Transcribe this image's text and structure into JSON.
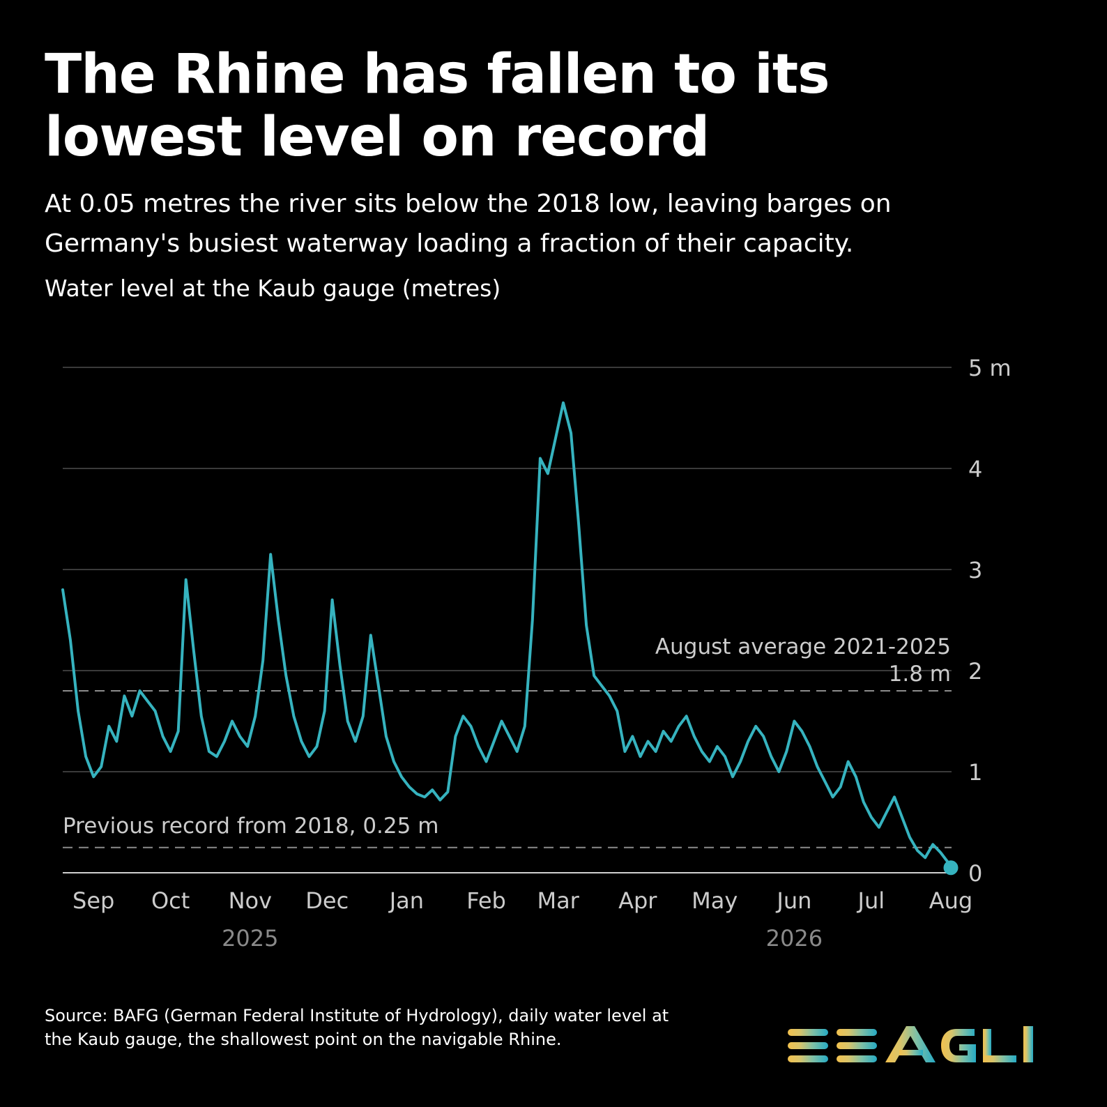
{
  "header": {
    "title": "The Rhine has fallen to its lowest level on record",
    "subtitle": "At 0.05 metres the river sits below the 2018 low, leaving barges on Germany's busiest waterway loading a fraction of their capacity.",
    "ylabel": "Water level at the Kaub gauge (metres)"
  },
  "footer": {
    "source": "Source: BAFG (German Federal Institute of Hydrology), daily water level at the Kaub gauge, the shallowest point on the navigable Rhine.",
    "logo_text": "EEAGLI"
  },
  "colors": {
    "background": "#000000",
    "line": "#36b3bf",
    "reference_line": "#8c8c8c",
    "gridline": "#3a3a3a",
    "axis_text": "#cccccc",
    "year_text": "#8a8a8a",
    "logo_gradient": [
      "#f2c14e",
      "#d8c46b",
      "#7fc0a6",
      "#26aac4"
    ]
  },
  "chart_data": {
    "type": "line",
    "title": "",
    "ylabel": "",
    "ylim": [
      0,
      5
    ],
    "y_ticks": [
      {
        "value": 0,
        "label": "0"
      },
      {
        "value": 1,
        "label": "1"
      },
      {
        "value": 2,
        "label": "2"
      },
      {
        "value": 3,
        "label": "3"
      },
      {
        "value": 4,
        "label": "4"
      },
      {
        "value": 5,
        "label": "5 m"
      }
    ],
    "grid": true,
    "x_range": [
      "2025-08-20",
      "2026-08-16"
    ],
    "x_ticks": [
      {
        "date": "2025-09-01",
        "label": "Sep"
      },
      {
        "date": "2025-10-01",
        "label": "Oct"
      },
      {
        "date": "2025-11-01",
        "label": "Nov"
      },
      {
        "date": "2025-12-01",
        "label": "Dec"
      },
      {
        "date": "2026-01-01",
        "label": "Jan"
      },
      {
        "date": "2026-02-01",
        "label": "Feb"
      },
      {
        "date": "2026-03-01",
        "label": "Mar"
      },
      {
        "date": "2026-04-01",
        "label": "Apr"
      },
      {
        "date": "2026-05-01",
        "label": "May"
      },
      {
        "date": "2026-06-01",
        "label": "Jun"
      },
      {
        "date": "2026-07-01",
        "label": "Jul"
      },
      {
        "date": "2026-08-01",
        "label": "Aug"
      }
    ],
    "year_labels": [
      {
        "date": "2025-11-01",
        "label": "2025"
      },
      {
        "date": "2026-06-01",
        "label": "2026"
      }
    ],
    "reference_lines": [
      {
        "value": 1.8,
        "label_lines": [
          "August average 2021-2025",
          "1.8 m"
        ],
        "label_align": "right"
      },
      {
        "value": 0.25,
        "label_lines": [
          "Previous record from 2018, 0.25 m"
        ],
        "label_align": "left"
      }
    ],
    "series": [
      {
        "points": [
          [
            "2025-08-20",
            2.8
          ],
          [
            "2025-08-23",
            2.3
          ],
          [
            "2025-08-26",
            1.6
          ],
          [
            "2025-08-29",
            1.15
          ],
          [
            "2025-09-01",
            0.95
          ],
          [
            "2025-09-04",
            1.05
          ],
          [
            "2025-09-07",
            1.45
          ],
          [
            "2025-09-10",
            1.3
          ],
          [
            "2025-09-13",
            1.75
          ],
          [
            "2025-09-16",
            1.55
          ],
          [
            "2025-09-19",
            1.8
          ],
          [
            "2025-09-22",
            1.7
          ],
          [
            "2025-09-25",
            1.6
          ],
          [
            "2025-09-28",
            1.35
          ],
          [
            "2025-10-01",
            1.2
          ],
          [
            "2025-10-04",
            1.4
          ],
          [
            "2025-10-07",
            2.9
          ],
          [
            "2025-10-10",
            2.2
          ],
          [
            "2025-10-13",
            1.55
          ],
          [
            "2025-10-16",
            1.2
          ],
          [
            "2025-10-19",
            1.15
          ],
          [
            "2025-10-22",
            1.3
          ],
          [
            "2025-10-25",
            1.5
          ],
          [
            "2025-10-28",
            1.35
          ],
          [
            "2025-10-31",
            1.25
          ],
          [
            "2025-11-03",
            1.55
          ],
          [
            "2025-11-06",
            2.1
          ],
          [
            "2025-11-09",
            3.15
          ],
          [
            "2025-11-12",
            2.5
          ],
          [
            "2025-11-15",
            1.95
          ],
          [
            "2025-11-18",
            1.55
          ],
          [
            "2025-11-21",
            1.3
          ],
          [
            "2025-11-24",
            1.15
          ],
          [
            "2025-11-27",
            1.25
          ],
          [
            "2025-11-30",
            1.6
          ],
          [
            "2025-12-03",
            2.7
          ],
          [
            "2025-12-06",
            2.05
          ],
          [
            "2025-12-09",
            1.5
          ],
          [
            "2025-12-12",
            1.3
          ],
          [
            "2025-12-15",
            1.55
          ],
          [
            "2025-12-18",
            2.35
          ],
          [
            "2025-12-21",
            1.85
          ],
          [
            "2025-12-24",
            1.35
          ],
          [
            "2025-12-27",
            1.1
          ],
          [
            "2025-12-30",
            0.95
          ],
          [
            "2026-01-02",
            0.85
          ],
          [
            "2026-01-05",
            0.78
          ],
          [
            "2026-01-08",
            0.75
          ],
          [
            "2026-01-11",
            0.82
          ],
          [
            "2026-01-14",
            0.72
          ],
          [
            "2026-01-17",
            0.8
          ],
          [
            "2026-01-20",
            1.35
          ],
          [
            "2026-01-23",
            1.55
          ],
          [
            "2026-01-26",
            1.45
          ],
          [
            "2026-01-29",
            1.25
          ],
          [
            "2026-02-01",
            1.1
          ],
          [
            "2026-02-04",
            1.3
          ],
          [
            "2026-02-07",
            1.5
          ],
          [
            "2026-02-10",
            1.35
          ],
          [
            "2026-02-13",
            1.2
          ],
          [
            "2026-02-16",
            1.45
          ],
          [
            "2026-02-19",
            2.5
          ],
          [
            "2026-02-22",
            4.1
          ],
          [
            "2026-02-25",
            3.95
          ],
          [
            "2026-02-28",
            4.3
          ],
          [
            "2026-03-03",
            4.65
          ],
          [
            "2026-03-06",
            4.35
          ],
          [
            "2026-03-09",
            3.45
          ],
          [
            "2026-03-12",
            2.45
          ],
          [
            "2026-03-15",
            1.95
          ],
          [
            "2026-03-18",
            1.85
          ],
          [
            "2026-03-21",
            1.75
          ],
          [
            "2026-03-24",
            1.6
          ],
          [
            "2026-03-27",
            1.2
          ],
          [
            "2026-03-30",
            1.35
          ],
          [
            "2026-04-02",
            1.15
          ],
          [
            "2026-04-05",
            1.3
          ],
          [
            "2026-04-08",
            1.2
          ],
          [
            "2026-04-11",
            1.4
          ],
          [
            "2026-04-14",
            1.3
          ],
          [
            "2026-04-17",
            1.45
          ],
          [
            "2026-04-20",
            1.55
          ],
          [
            "2026-04-23",
            1.35
          ],
          [
            "2026-04-26",
            1.2
          ],
          [
            "2026-04-29",
            1.1
          ],
          [
            "2026-05-02",
            1.25
          ],
          [
            "2026-05-05",
            1.15
          ],
          [
            "2026-05-08",
            0.95
          ],
          [
            "2026-05-11",
            1.1
          ],
          [
            "2026-05-14",
            1.3
          ],
          [
            "2026-05-17",
            1.45
          ],
          [
            "2026-05-20",
            1.35
          ],
          [
            "2026-05-23",
            1.15
          ],
          [
            "2026-05-26",
            1.0
          ],
          [
            "2026-05-29",
            1.2
          ],
          [
            "2026-06-01",
            1.5
          ],
          [
            "2026-06-04",
            1.4
          ],
          [
            "2026-06-07",
            1.25
          ],
          [
            "2026-06-10",
            1.05
          ],
          [
            "2026-06-13",
            0.9
          ],
          [
            "2026-06-16",
            0.75
          ],
          [
            "2026-06-19",
            0.85
          ],
          [
            "2026-06-22",
            1.1
          ],
          [
            "2026-06-25",
            0.95
          ],
          [
            "2026-06-28",
            0.7
          ],
          [
            "2026-07-01",
            0.55
          ],
          [
            "2026-07-04",
            0.45
          ],
          [
            "2026-07-07",
            0.6
          ],
          [
            "2026-07-10",
            0.75
          ],
          [
            "2026-07-13",
            0.55
          ],
          [
            "2026-07-16",
            0.35
          ],
          [
            "2026-07-19",
            0.22
          ],
          [
            "2026-07-22",
            0.15
          ],
          [
            "2026-07-25",
            0.28
          ],
          [
            "2026-07-28",
            0.2
          ],
          [
            "2026-07-31",
            0.1
          ],
          [
            "2026-08-01",
            0.05
          ]
        ]
      }
    ],
    "latest_point": {
      "date": "2026-08-01",
      "value": 0.05
    }
  }
}
